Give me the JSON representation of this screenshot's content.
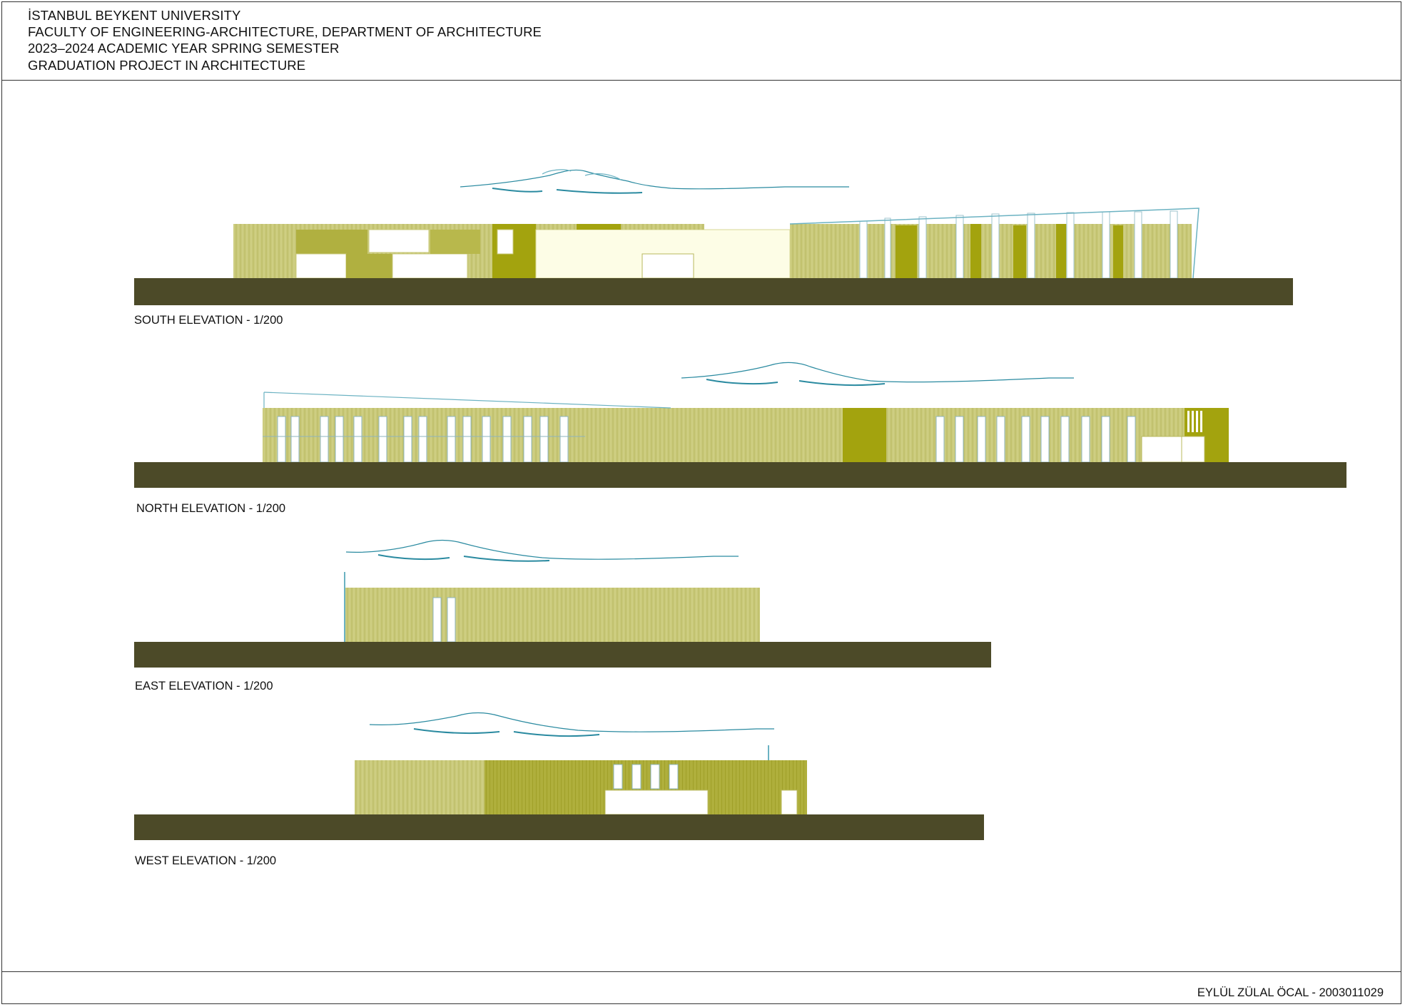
{
  "header": {
    "line1": "İSTANBUL BEYKENT UNIVERSITY",
    "line2": "FACULTY OF ENGINEERING-ARCHITECTURE, DEPARTMENT OF ARCHITECTURE",
    "line3": "2023–2024 ACADEMIC YEAR SPRING SEMESTER",
    "line4": "GRADUATION PROJECT IN ARCHITECTURE"
  },
  "elevations": {
    "south": "SOUTH ELEVATION - 1/200",
    "north": "NORTH ELEVATION - 1/200",
    "east": "EAST ELEVATION - 1/200",
    "west": "WEST ELEVATION - 1/200"
  },
  "footer": {
    "author": "EYLÜL ZÜLAL ÖCAL - 2003011029"
  },
  "colors": {
    "ground": "#4c4a28",
    "facade_light": "#c9c97a",
    "facade_mid": "#b5b542",
    "facade_dark": "#a3a30e",
    "glazing": "#ffffff",
    "tree_line": "#2a8aa0",
    "frame": "#333333"
  }
}
